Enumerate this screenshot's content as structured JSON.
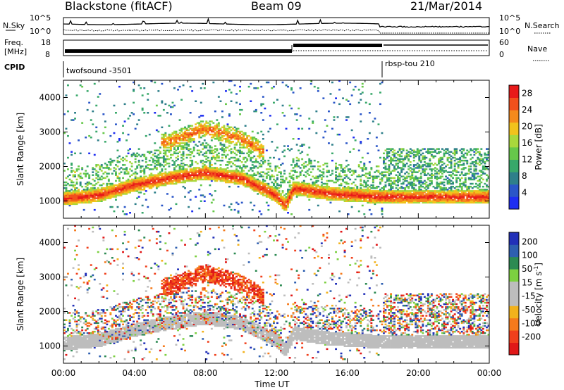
{
  "header": {
    "station": "Blackstone (fitACF)",
    "beam": "Beam 09",
    "date": "21/Mar/2014"
  },
  "top_panels": {
    "nsky_label": "N.Sky",
    "nsearch_label": "N.Search",
    "nsky_ticks": [
      "10^5",
      "10^0"
    ],
    "freq_label_1": "Freq.",
    "freq_label_2": "[MHz]",
    "freq_ticks": [
      "18",
      "8"
    ],
    "nave_label": "Nave",
    "nave_ticks": [
      "60",
      "0"
    ],
    "cpid_label": "CPID",
    "cpid_1": "twofsound -3501",
    "cpid_2": "rbsp-tou 210"
  },
  "chart_data": [
    {
      "type": "heatmap",
      "name": "power",
      "ylabel": "Slant Range [km]",
      "xlabel": "Time UT",
      "ylim": [
        500,
        4500
      ],
      "xlim_hours": [
        0,
        24
      ],
      "y_ticks": [
        1000,
        2000,
        3000,
        4000
      ],
      "x_ticks": [
        "00:00",
        "04:00",
        "08:00",
        "12:00",
        "16:00",
        "20:00",
        "00:00"
      ],
      "colorbar": {
        "label": "Power [dB]",
        "ticks": [
          4,
          8,
          12,
          16,
          20,
          24,
          28
        ],
        "range": [
          0,
          30
        ],
        "colors": [
          "#1e2ef2",
          "#2a56c8",
          "#2e7f8a",
          "#38a86a",
          "#66c84a",
          "#a9d83c",
          "#f1c21c",
          "#f58a1c",
          "#f2501c",
          "#e81a1a"
        ]
      },
      "band_main_km": [
        [
          0,
          1050
        ],
        [
          2,
          1150
        ],
        [
          4,
          1450
        ],
        [
          6,
          1650
        ],
        [
          8,
          1800
        ],
        [
          10,
          1650
        ],
        [
          12,
          1150
        ],
        [
          12.5,
          850
        ],
        [
          13,
          1350
        ],
        [
          15,
          1200
        ],
        [
          18,
          1100
        ],
        [
          24,
          1100
        ]
      ],
      "band_upper_km": [
        [
          6,
          2700
        ],
        [
          8,
          3100
        ],
        [
          10,
          2800
        ],
        [
          11.3,
          2400
        ]
      ]
    },
    {
      "type": "heatmap",
      "name": "velocity",
      "ylabel": "Slant Range [km]",
      "xlabel": "Time UT",
      "ylim": [
        500,
        4500
      ],
      "xlim_hours": [
        0,
        24
      ],
      "y_ticks": [
        1000,
        2000,
        3000,
        4000
      ],
      "x_ticks": [
        "00:00",
        "04:00",
        "08:00",
        "12:00",
        "16:00",
        "20:00",
        "00:00"
      ],
      "colorbar": {
        "label": "Velocity [m s",
        "label_sup": "-1",
        "label_end": "]",
        "ticks": [
          200,
          100,
          50,
          15,
          -15,
          -50,
          -100,
          -200
        ],
        "colors": [
          "#2230b8",
          "#2e5fb0",
          "#2c8a52",
          "#7cd040",
          "#bdbdbd",
          "#bdbdbd",
          "#f2b21c",
          "#f57a1c",
          "#f0401c",
          "#e01818"
        ]
      }
    }
  ],
  "colors": {
    "ground_scatter": "#bdbdbd",
    "line": "#000000"
  }
}
